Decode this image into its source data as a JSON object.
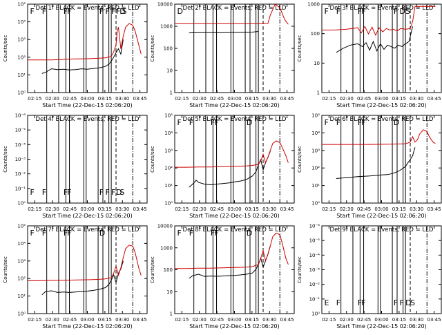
{
  "chart_data": [
    {
      "type": "line",
      "title": "Det 1f BLACK = Events, RED = LLD",
      "ylabel": "Counts/sec",
      "xlabel": "Start Time (22-Dec-15 02:06:20)",
      "xticks": [
        "02:15",
        "02:30",
        "02:45",
        "03:00",
        "03:15",
        "03:30",
        "03:45"
      ],
      "yscale": "log",
      "ylim": [
        1,
        100000
      ],
      "yticks": [
        "10⁰",
        "10¹",
        "10²",
        "10³",
        "10⁴",
        "10⁵"
      ],
      "series": [
        {
          "color": "#000000",
          "x": [
            12,
            15,
            20,
            25,
            30,
            35,
            40,
            45,
            50,
            55,
            60,
            65,
            68,
            70,
            72,
            74,
            76,
            78,
            80
          ],
          "y": [
            12,
            14,
            22,
            20,
            21,
            19,
            20,
            22,
            21,
            23,
            25,
            30,
            40,
            60,
            100,
            180,
            300,
            150,
            1000
          ]
        },
        {
          "color": "#cc0000",
          "x": [
            0,
            10,
            20,
            30,
            40,
            45,
            50,
            55,
            60,
            65,
            70,
            72,
            74,
            75,
            76,
            78,
            80,
            82,
            85,
            88,
            90,
            93,
            95
          ],
          "y": [
            70,
            70,
            70,
            75,
            80,
            80,
            82,
            85,
            88,
            92,
            110,
            200,
            500,
            3000,
            5000,
            300,
            1500,
            5000,
            8000,
            6500,
            3000,
            500,
            150
          ]
        }
      ],
      "flags": [
        "F",
        "F",
        "F",
        "F",
        "F",
        "F",
        "F",
        "F",
        "D",
        "S"
      ]
    },
    {
      "type": "line",
      "title": "Det 2f BLACK = Events, RED = LLD",
      "ylabel": "Counts/sec",
      "xlabel": "Start Time (22-Dec-15 02:06:20)",
      "xticks": [
        "02:15",
        "02:30",
        "02:45",
        "03:00",
        "03:15",
        "03:30",
        "03:45"
      ],
      "yscale": "log",
      "ylim": [
        1,
        13000
      ],
      "yticks": [
        "1",
        "10",
        "100",
        "1000",
        "10000"
      ],
      "series": [
        {
          "color": "#000000",
          "x": [
            12,
            20,
            30,
            40,
            50,
            60,
            65,
            70
          ],
          "y": [
            600,
            610,
            620,
            615,
            630,
            640,
            650,
            700
          ]
        },
        {
          "color": "#cc0000",
          "x": [
            0,
            20,
            40,
            60,
            72,
            75,
            78,
            80,
            84,
            88,
            92,
            95
          ],
          "y": [
            1600,
            1600,
            1600,
            1600,
            1600,
            1700,
            1650,
            4000,
            13000,
            9000,
            2500,
            1500
          ]
        }
      ],
      "flags": [
        "D"
      ]
    },
    {
      "type": "line",
      "title": "Det 3f BLACK = Events, RED = LLD",
      "ylabel": "Counts/sec",
      "xlabel": "Start Time (22-Dec-15 02:06:20)",
      "xticks": [
        "02:15",
        "02:30",
        "02:45",
        "03:00",
        "03:15",
        "03:30",
        "03:45"
      ],
      "yscale": "log",
      "ylim": [
        1,
        1200
      ],
      "yticks": [
        "1",
        "10",
        "100",
        "1000"
      ],
      "series": [
        {
          "color": "#000000",
          "x": [
            12,
            18,
            24,
            30,
            34,
            37,
            40,
            43,
            46,
            49,
            52,
            55,
            58,
            61,
            64,
            67,
            70,
            73,
            76
          ],
          "y": [
            25,
            35,
            45,
            50,
            40,
            55,
            30,
            60,
            28,
            50,
            32,
            45,
            40,
            35,
            45,
            40,
            50,
            60,
            200
          ]
        },
        {
          "color": "#cc0000",
          "x": [
            0,
            10,
            20,
            30,
            33,
            36,
            39,
            42,
            45,
            48,
            51,
            54,
            57,
            60,
            63,
            66,
            70,
            74,
            76,
            78,
            80,
            95
          ],
          "y": [
            150,
            150,
            160,
            180,
            120,
            200,
            110,
            190,
            100,
            180,
            130,
            170,
            150,
            160,
            140,
            170,
            160,
            170,
            300,
            1000,
            1000,
            1000
          ]
        }
      ],
      "flags": [
        "F",
        "F",
        "F",
        "F",
        "F",
        "D",
        "S"
      ]
    },
    {
      "type": "line",
      "title": "Det 4f BLACK = Events, RED = LLD",
      "ylabel": "Counts/sec",
      "xlabel": "Start Time (22-Dec-15 02:06:20)",
      "xticks": [
        "02:15",
        "02:30",
        "02:45",
        "03:00",
        "03:15",
        "03:30",
        "03:45"
      ],
      "yscale": "log",
      "ylim": [
        1,
        1e-06
      ],
      "yticks": [
        "10⁰",
        "10⁻¹",
        "10⁻²",
        "10⁻³",
        "10⁻⁴",
        "10⁻⁵",
        "10⁻⁶"
      ],
      "series": [],
      "flags": [
        "F",
        "F",
        "F",
        "F",
        "F",
        "F",
        "F",
        "D",
        "S"
      ]
    },
    {
      "type": "line",
      "title": "Det 5f BLACK = Events, RED = LLD",
      "ylabel": "Counts/sec",
      "xlabel": "Start Time (22-Dec-15 02:06:20)",
      "xticks": [
        "02:15",
        "02:30",
        "02:45",
        "03:00",
        "03:15",
        "03:30",
        "03:45"
      ],
      "yscale": "log",
      "ylim": [
        1,
        100000
      ],
      "yticks": [
        "10⁰",
        "10¹",
        "10²",
        "10³",
        "10⁴",
        "10⁵"
      ],
      "series": [
        {
          "color": "#000000",
          "x": [
            12,
            15,
            18,
            20,
            25,
            30,
            35,
            40,
            45,
            50,
            55,
            60,
            65,
            68,
            70,
            72,
            74,
            76,
            78,
            80
          ],
          "y": [
            8,
            12,
            20,
            15,
            12,
            11,
            12,
            13,
            14,
            16,
            18,
            22,
            35,
            60,
            150,
            300,
            80,
            200,
            400,
            900
          ]
        },
        {
          "color": "#cc0000",
          "x": [
            0,
            10,
            20,
            30,
            40,
            50,
            60,
            65,
            70,
            72,
            74,
            76,
            78,
            80,
            82,
            85,
            88,
            90,
            93,
            95
          ],
          "y": [
            110,
            110,
            115,
            115,
            120,
            125,
            130,
            140,
            160,
            250,
            600,
            200,
            400,
            1000,
            2500,
            3500,
            2800,
            1500,
            500,
            200
          ]
        }
      ],
      "flags": [
        "F",
        "F",
        "F",
        "F",
        "D"
      ]
    },
    {
      "type": "line",
      "title": "Det 6f BLACK = Events, RED = LLD",
      "ylabel": "Counts/sec",
      "xlabel": "Start Time (22-Dec-15 02:06:20)",
      "xticks": [
        "02:15",
        "02:30",
        "02:45",
        "03:00",
        "03:15",
        "03:30",
        "03:45"
      ],
      "yscale": "log",
      "ylim": [
        1,
        100000
      ],
      "yticks": [
        "10⁰",
        "10¹",
        "10²",
        "10³",
        "10⁴",
        "10⁵"
      ],
      "series": [
        {
          "color": "#000000",
          "x": [
            12,
            20,
            30,
            40,
            50,
            55,
            60,
            65,
            70,
            72,
            74,
            76,
            78
          ],
          "y": [
            25,
            28,
            32,
            35,
            40,
            42,
            50,
            70,
            120,
            200,
            300,
            500,
            1500
          ]
        },
        {
          "color": "#cc0000",
          "x": [
            0,
            20,
            40,
            60,
            70,
            74,
            76,
            78,
            80,
            82,
            85,
            88,
            90,
            93,
            95
          ],
          "y": [
            2200,
            2200,
            2200,
            2300,
            2400,
            3000,
            6000,
            3000,
            4000,
            9000,
            15000,
            12000,
            6000,
            3000,
            2500
          ]
        }
      ],
      "flags": [
        "F",
        "F",
        "F",
        "F",
        "D"
      ]
    },
    {
      "type": "line",
      "title": "Det 7f BLACK = Events, RED = LLD",
      "ylabel": "Counts/sec",
      "xlabel": "Start Time (22-Dec-15 02:06:20)",
      "xticks": [
        "02:15",
        "02:30",
        "02:45",
        "03:00",
        "03:15",
        "03:30",
        "03:45"
      ],
      "yscale": "log",
      "ylim": [
        1,
        100000
      ],
      "yticks": [
        "10⁰",
        "10¹",
        "10²",
        "10³",
        "10⁴",
        "10⁵"
      ],
      "series": [
        {
          "color": "#000000",
          "x": [
            12,
            15,
            20,
            25,
            30,
            35,
            40,
            45,
            50,
            55,
            60,
            65,
            68,
            70,
            72,
            74,
            76,
            78,
            80
          ],
          "y": [
            12,
            18,
            20,
            16,
            17,
            16,
            17,
            18,
            19,
            21,
            24,
            30,
            45,
            80,
            160,
            60,
            200,
            350,
            1000
          ]
        },
        {
          "color": "#cc0000",
          "x": [
            0,
            10,
            20,
            30,
            40,
            50,
            60,
            65,
            70,
            72,
            74,
            76,
            78,
            80,
            82,
            85,
            88,
            90,
            93,
            95
          ],
          "y": [
            75,
            75,
            78,
            80,
            82,
            85,
            90,
            95,
            110,
            200,
            500,
            150,
            400,
            1500,
            5000,
            8000,
            7000,
            3000,
            400,
            150
          ]
        }
      ],
      "flags": [
        "F",
        "F",
        "F",
        "F",
        "D"
      ]
    },
    {
      "type": "line",
      "title": "Det 8f BLACK = Events, RED = LLD",
      "ylabel": "Counts/sec",
      "xlabel": "Start Time (22-Dec-15 02:06:20)",
      "xticks": [
        "02:15",
        "02:30",
        "02:45",
        "03:00",
        "03:15",
        "03:30",
        "03:45"
      ],
      "yscale": "log",
      "ylim": [
        1,
        13000
      ],
      "yticks": [
        "1",
        "10",
        "100",
        "1000",
        "10000"
      ],
      "series": [
        {
          "color": "#000000",
          "x": [
            12,
            15,
            20,
            25,
            30,
            35,
            40,
            45,
            50,
            55,
            60,
            65,
            68,
            70,
            72,
            74,
            76,
            78,
            80
          ],
          "y": [
            45,
            60,
            70,
            55,
            58,
            56,
            58,
            60,
            62,
            65,
            70,
            80,
            120,
            200,
            400,
            150,
            300,
            600,
            1500
          ]
        },
        {
          "color": "#cc0000",
          "x": [
            0,
            10,
            20,
            30,
            40,
            50,
            60,
            65,
            70,
            72,
            74,
            76,
            78,
            80,
            82,
            85,
            88,
            90,
            93,
            95
          ],
          "y": [
            130,
            130,
            135,
            135,
            140,
            145,
            150,
            160,
            200,
            400,
            900,
            300,
            600,
            1500,
            4000,
            6000,
            5000,
            2000,
            400,
            200
          ]
        }
      ],
      "flags": [
        "F",
        "F",
        "F",
        "F",
        "D"
      ]
    },
    {
      "type": "line",
      "title": "Det 9f BLACK = Events, RED = LLD",
      "ylabel": "Counts/sec",
      "xlabel": "Start Time (22-Dec-15 02:06:20)",
      "xticks": [
        "02:15",
        "02:30",
        "02:45",
        "03:00",
        "03:15",
        "03:30",
        "03:45"
      ],
      "yscale": "log",
      "ylim": [
        1,
        1e-06
      ],
      "yticks": [
        "10⁰",
        "10⁻¹",
        "10⁻²",
        "10⁻³",
        "10⁻⁴",
        "10⁻⁵",
        "10⁻⁶"
      ],
      "series": [],
      "flags": [
        "E",
        "F",
        "F",
        "F",
        "F",
        "F",
        "D",
        "S"
      ]
    }
  ]
}
